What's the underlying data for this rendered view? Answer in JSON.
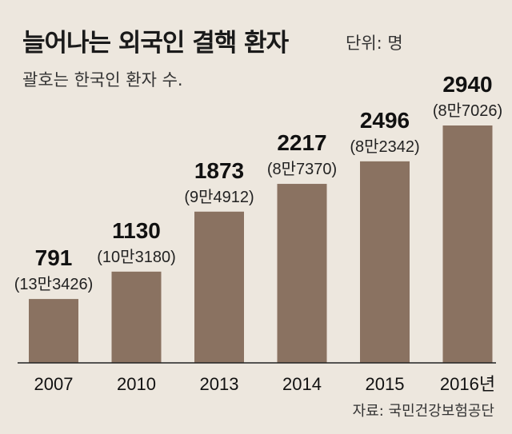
{
  "title": "늘어나는 외국인 결핵 환자",
  "unit_label": "단위: 명",
  "subtitle": "괄호는 한국인 환자 수.",
  "source": "자료: 국민건강보험공단",
  "colors": {
    "bar": "#8a7261",
    "background": "#ede7de",
    "axis": "#222222"
  },
  "chart_data": {
    "type": "bar",
    "categories": [
      "2007",
      "2010",
      "2013",
      "2014",
      "2015",
      "2016년"
    ],
    "series": [
      {
        "values": [
          791,
          1130,
          1873,
          2217,
          2496,
          2940
        ],
        "labels": [
          "791",
          "1130",
          "1873",
          "2217",
          "2496",
          "2940"
        ]
      }
    ],
    "annotations": [
      "(13만3426)",
      "(10만3180)",
      "(9만4912)",
      "(8만7370)",
      "(8만2342)",
      "(8만7026)"
    ],
    "grid": false
  }
}
